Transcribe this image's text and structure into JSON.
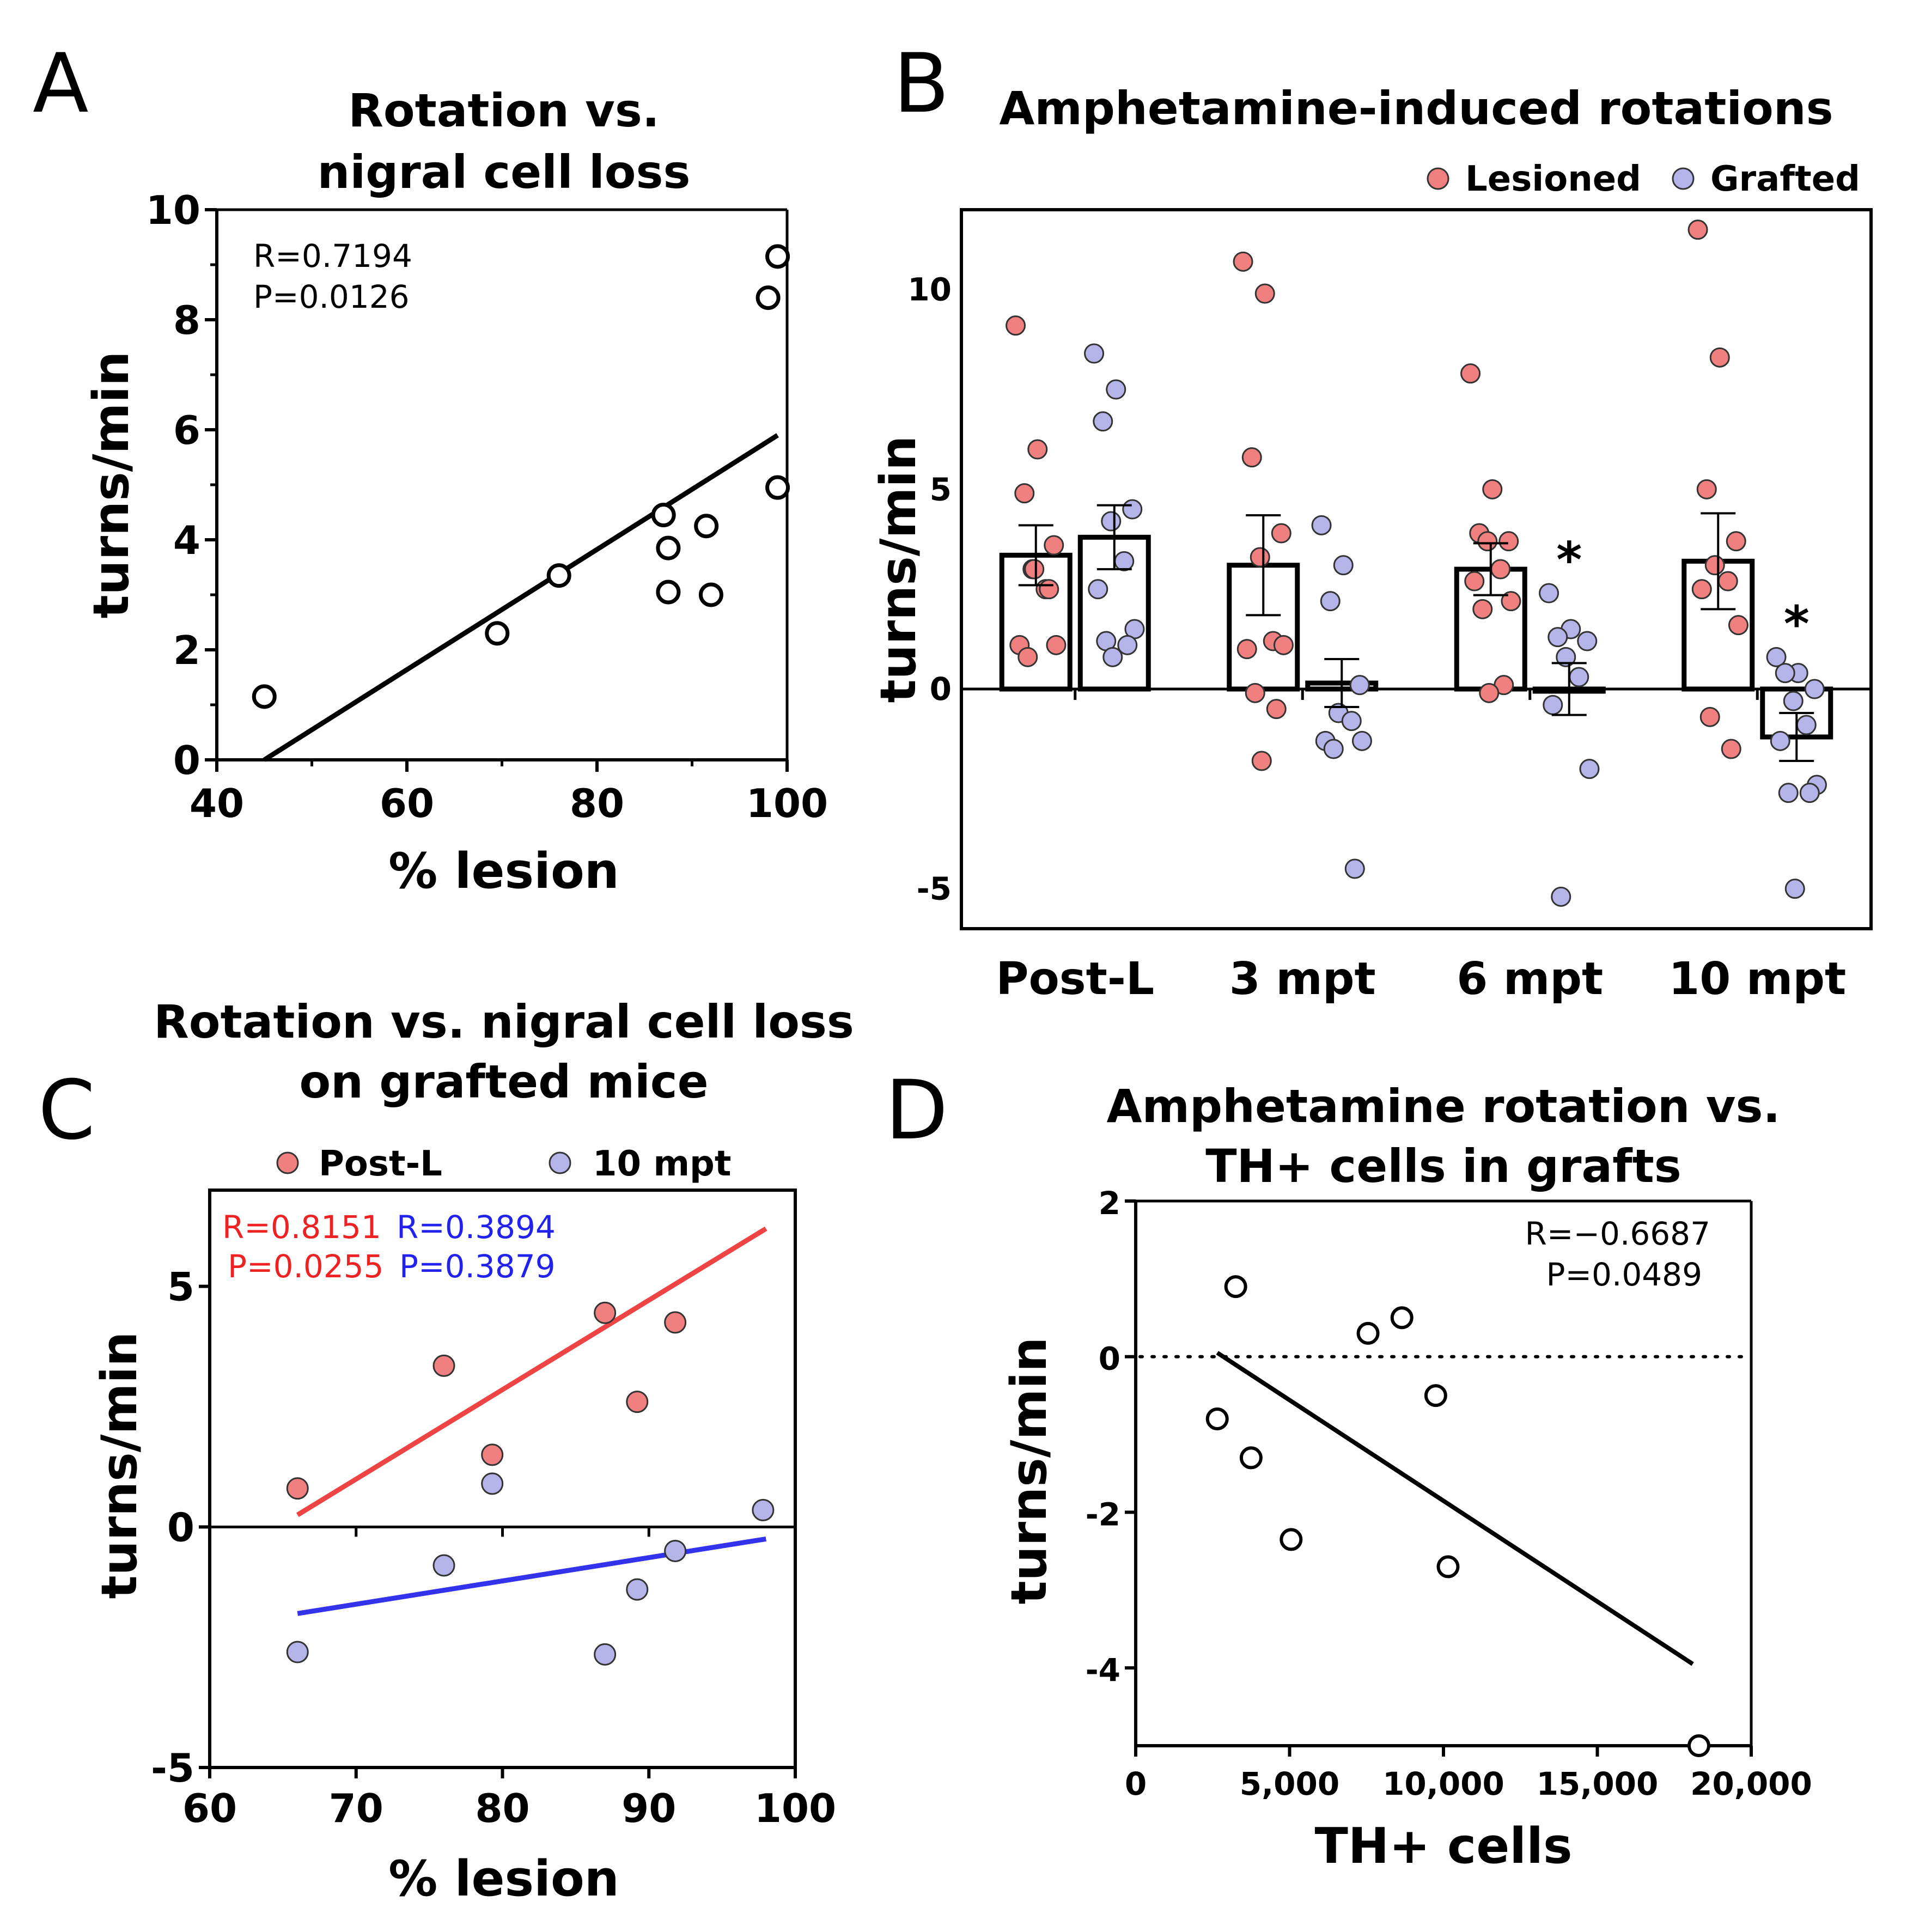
{
  "chart_data": [
    {
      "panel": "A",
      "type": "scatter",
      "title": [
        "Rotation vs.",
        "nigral cell loss"
      ],
      "xlabel": "% lesion",
      "ylabel": "turns/min",
      "xlim": [
        40,
        100
      ],
      "ylim": [
        0,
        10
      ],
      "xticks": [
        40,
        60,
        80,
        100
      ],
      "yticks": [
        0,
        2,
        4,
        6,
        8,
        10
      ],
      "annotations": [
        "R=0.7194",
        "P=0.0126"
      ],
      "points": [
        {
          "x": 45,
          "y": 1.15
        },
        {
          "x": 69.5,
          "y": 2.3
        },
        {
          "x": 76,
          "y": 3.35
        },
        {
          "x": 87,
          "y": 4.45
        },
        {
          "x": 87.5,
          "y": 3.85
        },
        {
          "x": 87.5,
          "y": 3.05
        },
        {
          "x": 91.5,
          "y": 4.25
        },
        {
          "x": 92,
          "y": 3.0
        },
        {
          "x": 98,
          "y": 8.4
        },
        {
          "x": 99,
          "y": 9.15
        },
        {
          "x": 99,
          "y": 4.95
        }
      ],
      "fit": {
        "x1": 45,
        "y1": 0,
        "x2": 99,
        "y2": 5.9
      }
    },
    {
      "panel": "B",
      "type": "bar",
      "title": "Amphetamine-induced rotations",
      "ylabel": "turns/min",
      "ylim": [
        -6,
        12
      ],
      "yticks": [
        -5,
        0,
        5,
        10
      ],
      "categories": [
        "Post-L",
        "3 mpt",
        "6 mpt",
        "10 mpt"
      ],
      "legend": [
        "Lesioned",
        "Grafted"
      ],
      "colors": {
        "Lesioned": "#f08080",
        "Grafted": "#b4b4e8"
      },
      "series": [
        {
          "name": "Lesioned",
          "means": [
            3.35,
            3.1,
            3.0,
            3.2
          ],
          "sem": [
            0.75,
            1.25,
            0.65,
            1.2
          ],
          "points": [
            [
              9.1,
              6.0,
              4.9,
              3.6,
              3.0,
              2.5,
              1.1,
              1.1,
              0.8,
              2.5,
              3.0
            ],
            [
              10.7,
              9.9,
              5.8,
              3.9,
              3.3,
              1.2,
              1.0,
              1.1,
              -0.1,
              -0.5,
              -1.8
            ],
            [
              7.9,
              5.0,
              3.9,
              3.7,
              3.7,
              3.0,
              2.7,
              2.2,
              2.0,
              0.1,
              -0.1
            ],
            [
              11.5,
              8.3,
              5.0,
              3.7,
              3.1,
              2.7,
              2.5,
              1.6,
              -0.7,
              -1.5
            ]
          ]
        },
        {
          "name": "Grafted",
          "means": [
            3.8,
            0.15,
            0.0,
            -1.2
          ],
          "sem": [
            0.8,
            0.6,
            0.65,
            0.6
          ],
          "points": [
            [
              8.4,
              7.5,
              6.7,
              4.5,
              4.2,
              3.2,
              2.5,
              1.5,
              1.2,
              1.1,
              0.8
            ],
            [
              4.1,
              3.1,
              2.2,
              0.1,
              -0.6,
              -0.8,
              -1.3,
              -1.3,
              -1.5,
              -4.5
            ],
            [
              2.4,
              1.5,
              1.3,
              1.2,
              0.8,
              0.3,
              -0.4,
              -2.0,
              -5.2
            ],
            [
              0.8,
              0.4,
              0.4,
              0.0,
              -0.3,
              -0.9,
              -1.3,
              -2.4,
              -2.6,
              -2.6,
              -5.0
            ]
          ]
        }
      ],
      "significance": [
        {
          "category": "6 mpt",
          "label": "*"
        },
        {
          "category": "10 mpt",
          "label": "*"
        }
      ]
    },
    {
      "panel": "C",
      "type": "scatter",
      "title": [
        "Rotation vs. nigral cell loss",
        "on grafted mice"
      ],
      "xlabel": "% lesion",
      "ylabel": "turns/min",
      "xlim": [
        60,
        100
      ],
      "ylim": [
        -5,
        7
      ],
      "xticks": [
        60,
        70,
        80,
        90,
        100
      ],
      "yticks": [
        -5,
        0,
        5
      ],
      "legend": [
        "Post-L",
        "10 mpt"
      ],
      "series": [
        {
          "name": "Post-L",
          "color": "#f08080",
          "line_color": "#ee4444",
          "annotation": [
            "R=0.8151",
            "P=0.0255"
          ],
          "points": [
            {
              "x": 66,
              "y": 0.8
            },
            {
              "x": 76,
              "y": 3.35
            },
            {
              "x": 79.3,
              "y": 1.5
            },
            {
              "x": 87,
              "y": 4.45
            },
            {
              "x": 89.2,
              "y": 2.6
            },
            {
              "x": 91.8,
              "y": 4.25
            }
          ],
          "fit": {
            "x1": 66,
            "y1": 0.25,
            "x2": 98,
            "y2": 6.2
          }
        },
        {
          "name": "10 mpt",
          "color": "#b4b4e8",
          "line_color": "#3333ee",
          "annotation": [
            "R=0.3894",
            "P=0.3879"
          ],
          "points": [
            {
              "x": 66,
              "y": -2.6
            },
            {
              "x": 76,
              "y": -0.8
            },
            {
              "x": 79.3,
              "y": 0.9
            },
            {
              "x": 87,
              "y": -2.65
            },
            {
              "x": 89.2,
              "y": -1.3
            },
            {
              "x": 91.8,
              "y": -0.5
            },
            {
              "x": 97.8,
              "y": 0.35
            }
          ],
          "fit": {
            "x1": 66,
            "y1": -1.8,
            "x2": 98,
            "y2": -0.25
          }
        }
      ]
    },
    {
      "panel": "D",
      "type": "scatter",
      "title": [
        "Amphetamine rotation vs.",
        "TH+ cells in grafts"
      ],
      "xlabel": "TH+ cells",
      "ylabel": "turns/min",
      "xlim": [
        0,
        20000
      ],
      "ylim": [
        -5,
        2
      ],
      "xticks": [
        0,
        5000,
        10000,
        15000,
        20000
      ],
      "xtick_labels": [
        "0",
        "5,000",
        "10,000",
        "15,000",
        "20,000"
      ],
      "yticks": [
        -4,
        -2,
        0,
        2
      ],
      "annotations": [
        "R=−0.6687",
        "P=0.0489"
      ],
      "points": [
        {
          "x": 2650,
          "y": -0.8
        },
        {
          "x": 3250,
          "y": 0.9
        },
        {
          "x": 3750,
          "y": -1.3
        },
        {
          "x": 5050,
          "y": -2.35
        },
        {
          "x": 7550,
          "y": 0.3
        },
        {
          "x": 8650,
          "y": 0.5
        },
        {
          "x": 9750,
          "y": -0.5
        },
        {
          "x": 10150,
          "y": -2.7
        },
        {
          "x": 18300,
          "y": -5.0
        }
      ],
      "fit": {
        "x1": 2650,
        "y1": 0.05,
        "x2": 18100,
        "y2": -3.95
      }
    }
  ],
  "panel_letters": [
    "A",
    "B",
    "C",
    "D"
  ]
}
